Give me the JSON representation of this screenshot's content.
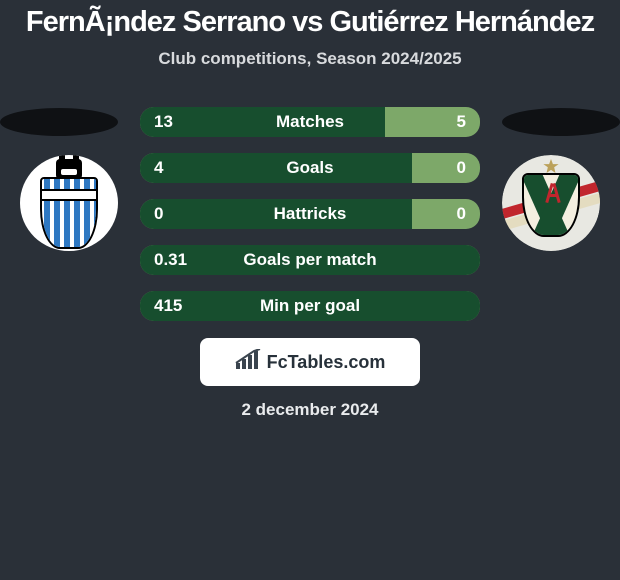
{
  "background_color": "#2a3038",
  "title": {
    "text": "FernÃ¡ndez Serrano vs Gutiérrez Hernández",
    "color": "#ffffff",
    "fontsize": 29
  },
  "subtitle": {
    "text": "Club competitions, Season 2024/2025",
    "color": "#d8dadd",
    "fontsize": 17
  },
  "platform_color": "#0f1114",
  "badge_left": {
    "name": "club-left-badge",
    "circle_bg": "#ffffff",
    "stripe_color": "#2e78c2",
    "outline": "#000000"
  },
  "badge_right": {
    "name": "club-right-badge",
    "circle_bg": "#e8e8e2",
    "shield_bg": "#f4efe0",
    "green": "#174e2e",
    "red": "#c1262d",
    "tan": "#e4dcc0",
    "star_color": "#bba15a"
  },
  "rows": {
    "left_fill_color": "#174e2e",
    "right_fill_color": "#7da869",
    "text_color": "#ffffff",
    "value_fontsize": 17,
    "label_fontsize": 17,
    "height": 30,
    "items": [
      {
        "label": "Matches",
        "left_value": "13",
        "right_value": "5",
        "left_width_pct": 72
      },
      {
        "label": "Goals",
        "left_value": "4",
        "right_value": "0",
        "left_width_pct": 80
      },
      {
        "label": "Hattricks",
        "left_value": "0",
        "right_value": "0",
        "left_width_pct": 80
      },
      {
        "label": "Goals per match",
        "left_value": "0.31",
        "right_value": "",
        "left_width_pct": 100
      },
      {
        "label": "Min per goal",
        "left_value": "415",
        "right_value": "",
        "left_width_pct": 100
      }
    ]
  },
  "brand": {
    "bg": "#ffffff",
    "text": "FcTables.com",
    "text_color": "#27313a",
    "fontsize": 18,
    "icon_color": "#3a444e"
  },
  "date": {
    "text": "2 december 2024",
    "color": "#e9ebed",
    "fontsize": 17
  }
}
